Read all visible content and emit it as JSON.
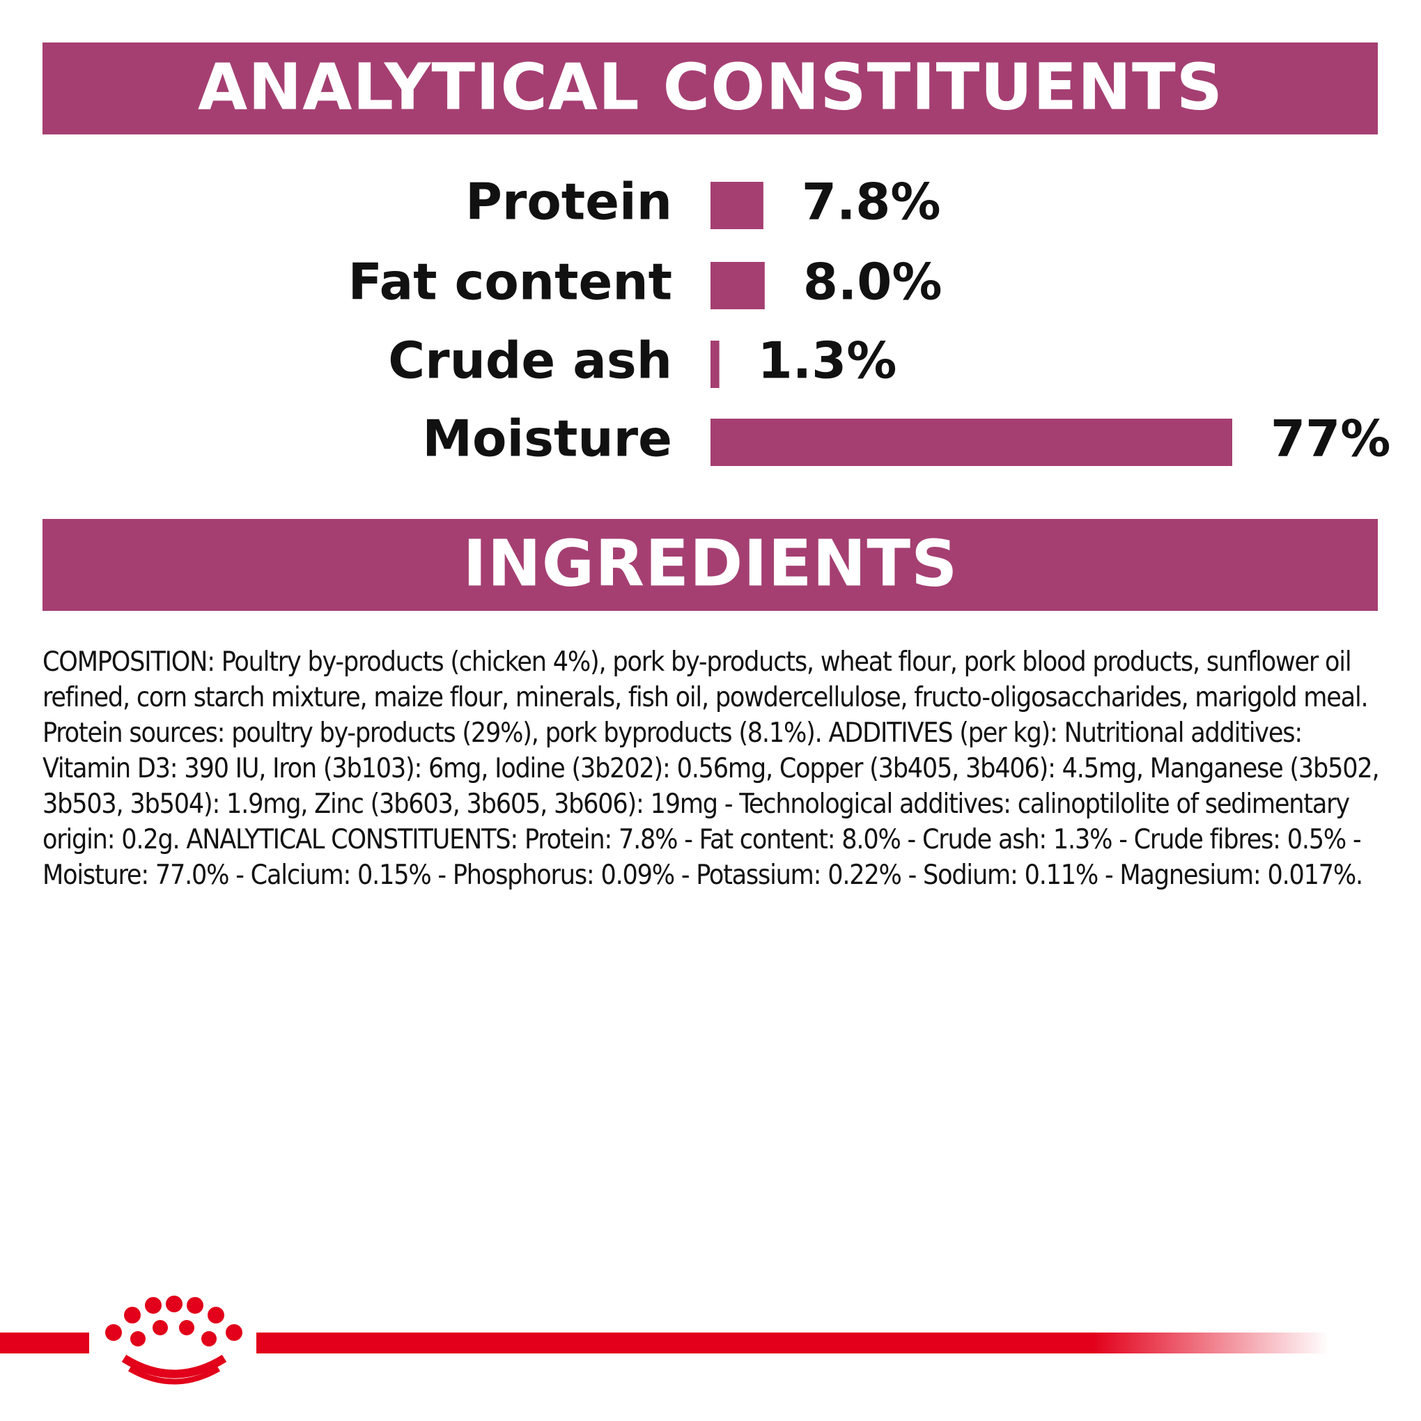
{
  "chart_data": {
    "type": "bar",
    "title": "ANALYTICAL CONSTITUENTS",
    "categories": [
      "Protein",
      "Fat content",
      "Crude ash",
      "Moisture"
    ],
    "values": [
      7.8,
      8.0,
      1.3,
      77
    ],
    "value_labels": [
      "7.8%",
      "8.0%",
      "1.3%",
      "77%"
    ],
    "color": "#a53f72"
  },
  "ingredients": {
    "title": "INGREDIENTS",
    "text": "COMPOSITION: Poultry by-products (chicken 4%), pork by-products, wheat flour, pork blood products, sunflower oil refined, corn starch mixture, maize flour, minerals, fish oil, powdercellulose, fructo-oligosaccharides, marigold meal. Protein sources: poultry by-products (29%), pork byproducts (8.1%). ADDITIVES (per kg): Nutritional additives: Vitamin D3: 390 IU, Iron (3b103): 6mg, Iodine (3b202): 0.56mg, Copper (3b405, 3b406): 4.5mg, Manganese (3b502, 3b503, 3b504): 1.9mg, Zinc (3b603, 3b605, 3b606): 19mg - Technological additives: calinoptilolite of sedimentary origin: 0.2g. ANALYTICAL CONSTITUENTS: Protein: 7.8% - Fat content: 8.0% - Crude ash: 1.3% - Crude fibres: 0.5% - Moisture: 77.0% - Calcium: 0.15% - Phosphorus: 0.09% - Potassium: 0.22% - Sodium: 0.11% - Magnesium: 0.017%."
  }
}
